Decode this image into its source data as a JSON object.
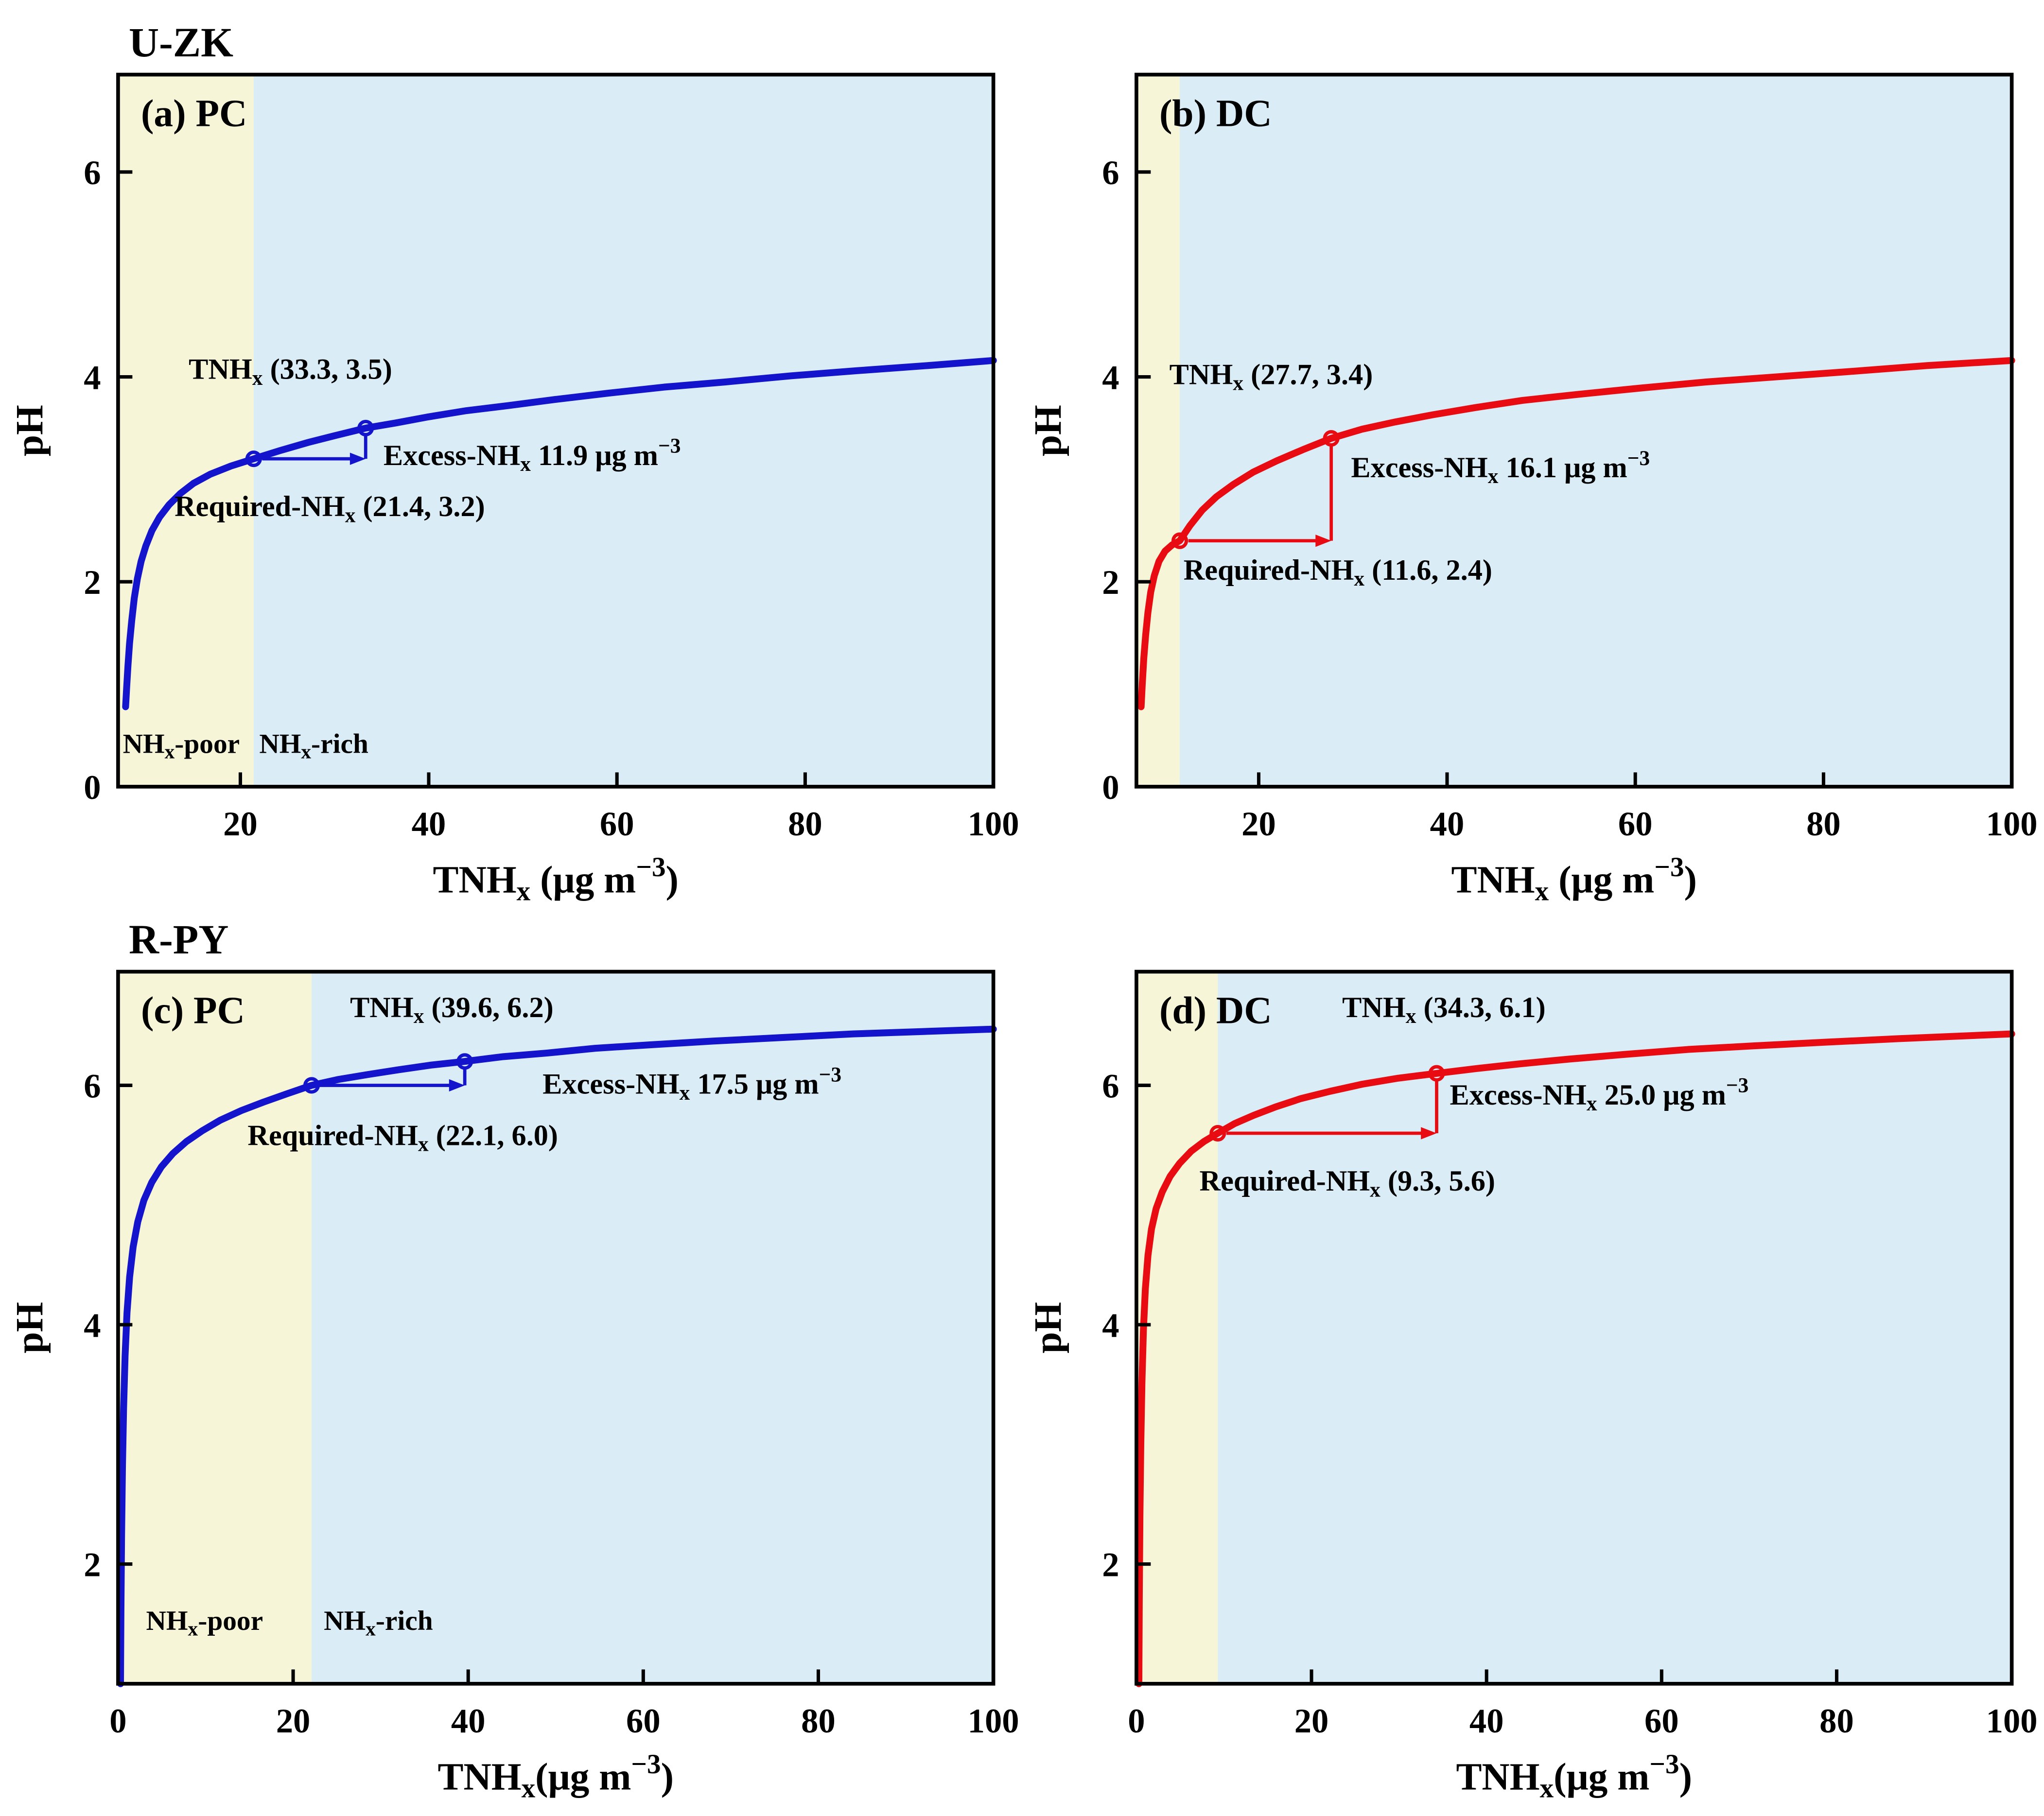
{
  "figure": {
    "row_titles": [
      "U-ZK",
      "R-PY"
    ]
  },
  "chart_data": [
    {
      "id": "a",
      "type": "line",
      "group_title": "U-ZK",
      "panel_label": "(a) PC",
      "series_color": "#1414cd",
      "xlabel": "TNH~x~ (μg m^−3^)",
      "ylabel": "pH",
      "xlim": [
        7,
        100
      ],
      "ylim": [
        0,
        6.95
      ],
      "xticks": [
        20,
        40,
        60,
        80,
        100
      ],
      "yticks": [
        0,
        2,
        4,
        6
      ],
      "regions": {
        "poor": {
          "label": "NH~x~-poor",
          "color": "#f6f5d8"
        },
        "rich": {
          "label": "NH~x~-rich",
          "color": "#daecf6"
        },
        "boundary_x": 21.4
      },
      "points": {
        "tnhx": {
          "x": 33.3,
          "y": 3.5
        },
        "required": {
          "x": 21.4,
          "y": 3.2
        }
      },
      "excess_ug_m3": 11.9,
      "bracket": {
        "hy": 3.2,
        "hx1": 21.4,
        "hx2": 33.3,
        "vx": 33.3,
        "vy1": 3.2,
        "vy2": 3.5
      },
      "annotations": [
        {
          "name": "tnhx-label",
          "text": "TNH~x~ (33.3, 3.5)",
          "x": 14.5,
          "y": 3.98,
          "anchor": "start"
        },
        {
          "name": "excess-label",
          "text": "Excess-NH~x~ 11.9 μg m^−3^",
          "x": 35.2,
          "y": 3.14,
          "anchor": "start"
        },
        {
          "name": "required-label",
          "text": "Required-NH~x~ (21.4, 3.2)",
          "x": 13.0,
          "y": 2.64,
          "anchor": "start"
        },
        {
          "name": "nhx-poor-label",
          "text": "NH~x~-poor",
          "x": 7.5,
          "y": 0.33,
          "anchor": "start"
        },
        {
          "name": "nhx-rich-label",
          "text": "NH~x~-rich",
          "x": 22.0,
          "y": 0.33,
          "anchor": "start"
        }
      ],
      "curve": [
        [
          7.8,
          0.78
        ],
        [
          7.92,
          0.98
        ],
        [
          8.05,
          1.18
        ],
        [
          8.22,
          1.4
        ],
        [
          8.45,
          1.62
        ],
        [
          8.72,
          1.84
        ],
        [
          9.05,
          2.03
        ],
        [
          9.45,
          2.2
        ],
        [
          9.95,
          2.35
        ],
        [
          10.6,
          2.5
        ],
        [
          11.4,
          2.63
        ],
        [
          12.4,
          2.75
        ],
        [
          13.6,
          2.86
        ],
        [
          15.0,
          2.96
        ],
        [
          16.8,
          3.05
        ],
        [
          19.0,
          3.13
        ],
        [
          21.4,
          3.2
        ],
        [
          24.2,
          3.28
        ],
        [
          27.2,
          3.36
        ],
        [
          30.2,
          3.43
        ],
        [
          33.3,
          3.5
        ],
        [
          36.5,
          3.55
        ],
        [
          40,
          3.61
        ],
        [
          44,
          3.67
        ],
        [
          48.5,
          3.72
        ],
        [
          53.5,
          3.78
        ],
        [
          59,
          3.84
        ],
        [
          65,
          3.9
        ],
        [
          71.5,
          3.95
        ],
        [
          78.5,
          4.01
        ],
        [
          85.5,
          4.06
        ],
        [
          93,
          4.11
        ],
        [
          100,
          4.16
        ]
      ]
    },
    {
      "id": "b",
      "type": "line",
      "panel_label": "(b) DC",
      "series_color": "#e80c12",
      "xlabel": "TNH~x~ (μg m^−3^)",
      "ylabel": "pH",
      "xlim": [
        7,
        100
      ],
      "ylim": [
        0,
        6.95
      ],
      "xticks": [
        20,
        40,
        60,
        80,
        100
      ],
      "yticks": [
        0,
        2,
        4,
        6
      ],
      "regions": {
        "poor": {
          "color": "#f6f5d8"
        },
        "rich": {
          "color": "#daecf6"
        },
        "boundary_x": 11.6
      },
      "points": {
        "tnhx": {
          "x": 27.7,
          "y": 3.4
        },
        "required": {
          "x": 11.6,
          "y": 2.4
        }
      },
      "excess_ug_m3": 16.1,
      "bracket": {
        "hy": 2.4,
        "hx1": 11.6,
        "hx2": 27.7,
        "vx": 27.7,
        "vy1": 2.4,
        "vy2": 3.4
      },
      "annotations": [
        {
          "name": "tnhx-label",
          "text": "TNH~x~ (27.7, 3.4)",
          "x": 10.5,
          "y": 3.93,
          "anchor": "start"
        },
        {
          "name": "excess-label",
          "text": "Excess-NH~x~ 16.1 μg m^−3^",
          "x": 29.8,
          "y": 3.02,
          "anchor": "start"
        },
        {
          "name": "required-label",
          "text": "Required-NH~x~ (11.6, 2.4)",
          "x": 12.0,
          "y": 2.02,
          "anchor": "start"
        }
      ],
      "curve": [
        [
          7.5,
          0.78
        ],
        [
          7.62,
          1.0
        ],
        [
          7.78,
          1.25
        ],
        [
          7.98,
          1.48
        ],
        [
          8.22,
          1.7
        ],
        [
          8.52,
          1.9
        ],
        [
          8.9,
          2.06
        ],
        [
          9.4,
          2.2
        ],
        [
          10.05,
          2.3
        ],
        [
          10.8,
          2.36
        ],
        [
          11.6,
          2.4
        ],
        [
          12.7,
          2.55
        ],
        [
          14.0,
          2.7
        ],
        [
          15.5,
          2.83
        ],
        [
          17.3,
          2.95
        ],
        [
          19.4,
          3.07
        ],
        [
          21.9,
          3.18
        ],
        [
          24.7,
          3.29
        ],
        [
          27.7,
          3.4
        ],
        [
          31,
          3.49
        ],
        [
          34.5,
          3.56
        ],
        [
          38.5,
          3.63
        ],
        [
          43,
          3.7
        ],
        [
          48,
          3.77
        ],
        [
          54,
          3.83
        ],
        [
          60.5,
          3.89
        ],
        [
          67.5,
          3.95
        ],
        [
          75,
          4.0
        ],
        [
          82.5,
          4.05
        ],
        [
          91,
          4.11
        ],
        [
          100,
          4.16
        ]
      ]
    },
    {
      "id": "c",
      "type": "line",
      "group_title": "R-PY",
      "panel_label": "(c) PC",
      "series_color": "#1414cd",
      "xlabel": "TNH~x~(μg m^−3^)",
      "ylabel": "pH",
      "xlim": [
        0,
        100
      ],
      "ylim": [
        1,
        6.95
      ],
      "xticks": [
        0,
        20,
        40,
        60,
        80,
        100
      ],
      "yticks": [
        2,
        4,
        6
      ],
      "regions": {
        "poor": {
          "label": "NH~x~-poor",
          "color": "#f6f5d8"
        },
        "rich": {
          "label": "NH~x~-rich",
          "color": "#daecf6"
        },
        "boundary_x": 22.1
      },
      "points": {
        "tnhx": {
          "x": 39.6,
          "y": 6.2
        },
        "required": {
          "x": 22.1,
          "y": 6.0
        }
      },
      "excess_ug_m3": 17.5,
      "bracket": {
        "hy": 6.0,
        "hx1": 22.1,
        "hx2": 39.6,
        "vx": 39.6,
        "vy1": 6.0,
        "vy2": 6.2
      },
      "annotations": [
        {
          "name": "tnhx-label",
          "text": "TNH~x~ (39.6, 6.2)",
          "x": 26.5,
          "y": 6.57,
          "anchor": "start"
        },
        {
          "name": "excess-label",
          "text": "Excess-NH~x~ 17.5 μg m^−3^",
          "x": 48.5,
          "y": 5.93,
          "anchor": "start"
        },
        {
          "name": "required-label",
          "text": "Required-NH~x~ (22.1, 6.0)",
          "x": 14.8,
          "y": 5.5,
          "anchor": "start"
        },
        {
          "name": "nhx-poor-label",
          "text": "NH~x~-poor",
          "x": 3.2,
          "y": 1.45,
          "anchor": "start"
        },
        {
          "name": "nhx-rich-label",
          "text": "NH~x~-rich",
          "x": 23.5,
          "y": 1.45,
          "anchor": "start"
        }
      ],
      "curve": [
        [
          0.28,
          1.0
        ],
        [
          0.33,
          1.62
        ],
        [
          0.4,
          2.22
        ],
        [
          0.5,
          2.8
        ],
        [
          0.63,
          3.3
        ],
        [
          0.8,
          3.74
        ],
        [
          1.02,
          4.1
        ],
        [
          1.32,
          4.4
        ],
        [
          1.72,
          4.65
        ],
        [
          2.25,
          4.86
        ],
        [
          2.95,
          5.04
        ],
        [
          3.85,
          5.19
        ],
        [
          4.95,
          5.32
        ],
        [
          6.25,
          5.43
        ],
        [
          7.8,
          5.53
        ],
        [
          9.6,
          5.62
        ],
        [
          11.7,
          5.71
        ],
        [
          14.1,
          5.79
        ],
        [
          16.6,
          5.86
        ],
        [
          19.3,
          5.93
        ],
        [
          22.1,
          6.0
        ],
        [
          25.2,
          6.05
        ],
        [
          28.5,
          6.09
        ],
        [
          32,
          6.13
        ],
        [
          35.8,
          6.17
        ],
        [
          39.6,
          6.2
        ],
        [
          44,
          6.24
        ],
        [
          49,
          6.27
        ],
        [
          54.5,
          6.31
        ],
        [
          61,
          6.34
        ],
        [
          68,
          6.37
        ],
        [
          76,
          6.4
        ],
        [
          84,
          6.43
        ],
        [
          92,
          6.45
        ],
        [
          100,
          6.47
        ]
      ]
    },
    {
      "id": "d",
      "type": "line",
      "panel_label": "(d) DC",
      "series_color": "#e80c12",
      "xlabel": "TNH~x~(μg m^−3^)",
      "ylabel": "pH",
      "xlim": [
        0,
        100
      ],
      "ylim": [
        1,
        6.95
      ],
      "xticks": [
        0,
        20,
        40,
        60,
        80,
        100
      ],
      "yticks": [
        2,
        4,
        6
      ],
      "regions": {
        "poor": {
          "color": "#f6f5d8"
        },
        "rich": {
          "color": "#daecf6"
        },
        "boundary_x": 9.3
      },
      "points": {
        "tnhx": {
          "x": 34.3,
          "y": 6.1
        },
        "required": {
          "x": 9.3,
          "y": 5.6
        }
      },
      "excess_ug_m3": 25.0,
      "bracket": {
        "hy": 5.6,
        "hx1": 9.3,
        "hx2": 34.3,
        "vx": 34.3,
        "vy1": 5.6,
        "vy2": 6.1
      },
      "annotations": [
        {
          "name": "tnhx-label",
          "text": "TNH~x~ (34.3, 6.1)",
          "x": 23.5,
          "y": 6.57,
          "anchor": "start"
        },
        {
          "name": "excess-label",
          "text": "Excess-NH~x~ 25.0 μg m^−3^",
          "x": 35.8,
          "y": 5.84,
          "anchor": "start"
        },
        {
          "name": "required-label",
          "text": "Required-NH~x~ (9.3, 5.6)",
          "x": 7.2,
          "y": 5.12,
          "anchor": "start"
        }
      ],
      "curve": [
        [
          0.28,
          1.0
        ],
        [
          0.33,
          1.72
        ],
        [
          0.4,
          2.4
        ],
        [
          0.5,
          3.0
        ],
        [
          0.63,
          3.52
        ],
        [
          0.8,
          3.96
        ],
        [
          1.02,
          4.3
        ],
        [
          1.32,
          4.58
        ],
        [
          1.72,
          4.8
        ],
        [
          2.25,
          4.97
        ],
        [
          2.95,
          5.11
        ],
        [
          3.85,
          5.24
        ],
        [
          4.95,
          5.35
        ],
        [
          6.25,
          5.45
        ],
        [
          7.7,
          5.53
        ],
        [
          9.3,
          5.6
        ],
        [
          11.2,
          5.68
        ],
        [
          13.4,
          5.75
        ],
        [
          15.9,
          5.82
        ],
        [
          18.8,
          5.89
        ],
        [
          22.1,
          5.95
        ],
        [
          25.8,
          6.01
        ],
        [
          29.9,
          6.06
        ],
        [
          34.3,
          6.1
        ],
        [
          38.8,
          6.14
        ],
        [
          43.8,
          6.18
        ],
        [
          49.5,
          6.22
        ],
        [
          56,
          6.26
        ],
        [
          63,
          6.3
        ],
        [
          70.5,
          6.33
        ],
        [
          78.5,
          6.36
        ],
        [
          87,
          6.39
        ],
        [
          100,
          6.43
        ]
      ]
    }
  ]
}
